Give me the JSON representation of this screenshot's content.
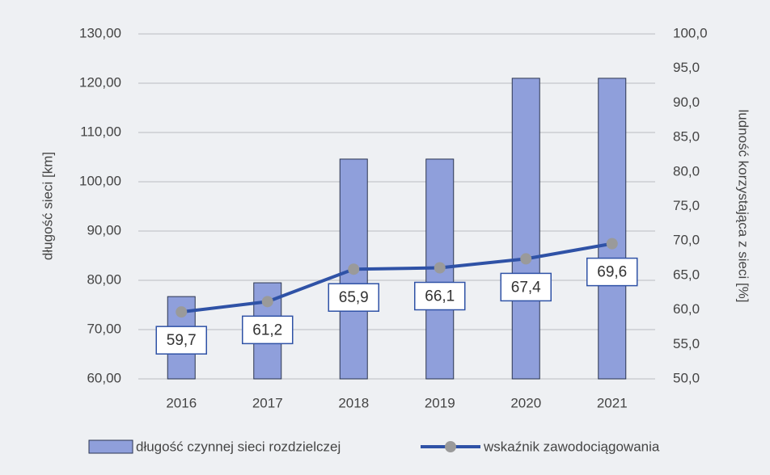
{
  "chart_data": {
    "type": "combo",
    "categories": [
      "2016",
      "2017",
      "2018",
      "2019",
      "2020",
      "2021"
    ],
    "series": [
      {
        "name": "długość czynnej sieci rozdzielczej",
        "type": "bar",
        "color": "#8f9fdb",
        "values": [
          76.7,
          79.5,
          104.6,
          104.6,
          121.0,
          121.0
        ]
      },
      {
        "name": "wskaźnik zawodociągowania",
        "type": "line",
        "axis": "y2",
        "color": "#2f52a6",
        "marker_color": "#9a9a9a",
        "values": [
          59.7,
          61.2,
          65.9,
          66.1,
          67.4,
          69.6
        ],
        "value_labels": [
          "59,7",
          "61,2",
          "65,9",
          "66,1",
          "67,4",
          "69,6"
        ]
      }
    ],
    "ylabel": "długość sieci [km]",
    "y2label": "ludność korzystająca z sieci [%]",
    "ylim": [
      60,
      130
    ],
    "yticks": [
      {
        "value": 60,
        "label": "60,00"
      },
      {
        "value": 70,
        "label": "70,00"
      },
      {
        "value": 80,
        "label": "80,00"
      },
      {
        "value": 90,
        "label": "90,00"
      },
      {
        "value": 100,
        "label": "100,00"
      },
      {
        "value": 110,
        "label": "110,00"
      },
      {
        "value": 120,
        "label": "120,00"
      },
      {
        "value": 130,
        "label": "130,00"
      }
    ],
    "y2lim": [
      50,
      100
    ],
    "y2ticks": [
      {
        "value": 50,
        "label": "50,0"
      },
      {
        "value": 55,
        "label": "55,0"
      },
      {
        "value": 60,
        "label": "60,0"
      },
      {
        "value": 65,
        "label": "65,0"
      },
      {
        "value": 70,
        "label": "70,0"
      },
      {
        "value": 75,
        "label": "75,0"
      },
      {
        "value": 80,
        "label": "80,0"
      },
      {
        "value": 85,
        "label": "85,0"
      },
      {
        "value": 90,
        "label": "90,0"
      },
      {
        "value": 95,
        "label": "95,0"
      },
      {
        "value": 100,
        "label": "100,0"
      }
    ],
    "grid": true,
    "legend": "bottom"
  }
}
